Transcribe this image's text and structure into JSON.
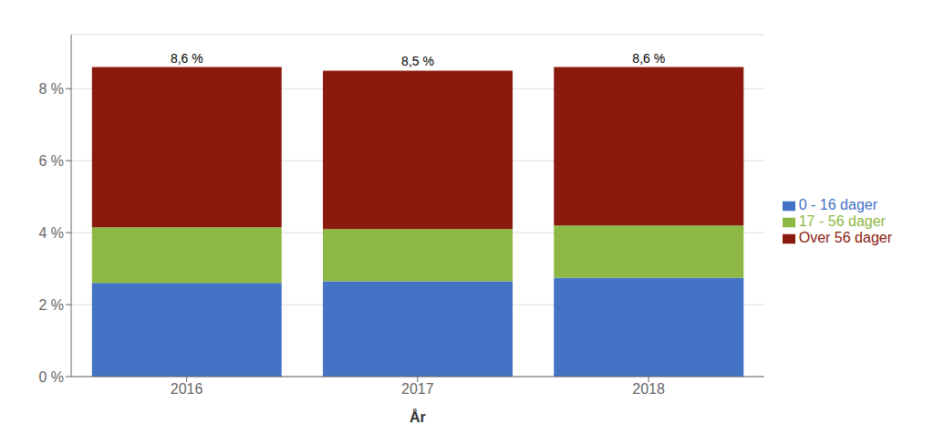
{
  "chart_data": {
    "type": "bar",
    "stacked": true,
    "categories": [
      "2016",
      "2017",
      "2018"
    ],
    "series": [
      {
        "name": "0 - 16 dager",
        "color": "#4472c4",
        "values": [
          2.6,
          2.65,
          2.75
        ]
      },
      {
        "name": "17 - 56 dager",
        "color": "#8db843",
        "values": [
          1.55,
          1.45,
          1.45
        ]
      },
      {
        "name": "Over 56 dager",
        "color": "#8b1a0e",
        "values": [
          4.45,
          4.4,
          4.4
        ]
      }
    ],
    "annotations": [
      "8,6 %",
      "8,5 %",
      "8,6 %"
    ],
    "xlabel": "År",
    "ylim": [
      0,
      9.5
    ],
    "yticks": [
      {
        "value": 0,
        "label": "0 %"
      },
      {
        "value": 2,
        "label": "2 %"
      },
      {
        "value": 4,
        "label": "4 %"
      },
      {
        "value": 6,
        "label": "6 %"
      },
      {
        "value": 8,
        "label": "8 %"
      }
    ],
    "grid": true,
    "legend": "right"
  }
}
